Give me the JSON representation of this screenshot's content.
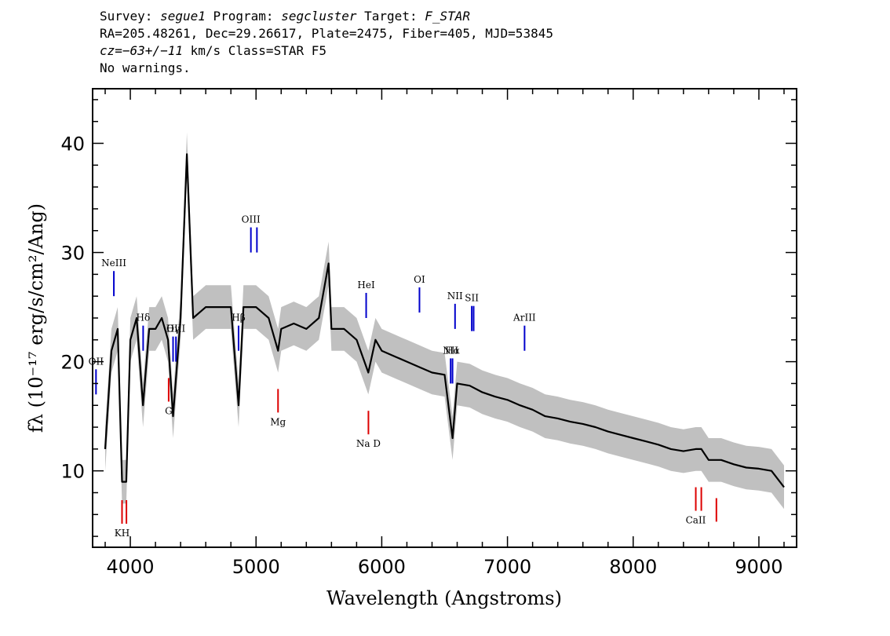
{
  "header": {
    "l1": {
      "a": "Survey: ",
      "b": "segue1",
      "c": " Program: ",
      "d": "segcluster",
      "e": " Target: ",
      "f": "F_STAR"
    },
    "l2": "RA=205.48261, Dec=29.26617, Plate=2475, Fiber=405, MJD=53845",
    "l3": {
      "a": "cz=−63+/−11",
      "b": " km/s Class=STAR F5"
    },
    "l4": "No warnings."
  },
  "colors": {
    "flux": "#000000",
    "error": "#c0c0c0",
    "emission": "#0000cc",
    "absorption": "#dd0000"
  },
  "chart_data": {
    "type": "line",
    "xlabel": "Wavelength (Angstroms)",
    "ylabel": "fλ (10⁻¹⁷ erg/s/cm²/Ang)",
    "xlim": [
      3700,
      9300
    ],
    "ylim": [
      3,
      45
    ],
    "xticks": [
      4000,
      5000,
      6000,
      7000,
      8000,
      9000
    ],
    "yticks": [
      10,
      20,
      30,
      40
    ],
    "x": [
      3800,
      3850,
      3900,
      3934,
      3968,
      4000,
      4050,
      4101,
      4150,
      4200,
      4250,
      4300,
      4340,
      4400,
      4450,
      4500,
      4600,
      4700,
      4800,
      4861,
      4900,
      5000,
      5100,
      5175,
      5200,
      5300,
      5400,
      5500,
      5577,
      5600,
      5700,
      5800,
      5893,
      5950,
      6000,
      6100,
      6200,
      6300,
      6400,
      6500,
      6563,
      6600,
      6700,
      6800,
      6900,
      7000,
      7100,
      7200,
      7300,
      7400,
      7500,
      7600,
      7700,
      7800,
      7900,
      8000,
      8100,
      8200,
      8300,
      8400,
      8498,
      8542,
      8600,
      8662,
      8700,
      8800,
      8900,
      9000,
      9100,
      9200
    ],
    "y": [
      12,
      21,
      23,
      9,
      9,
      22,
      24,
      16,
      23,
      23,
      24,
      22,
      15,
      24,
      39,
      24,
      25,
      25,
      25,
      16,
      25,
      25,
      24,
      21,
      23,
      23.5,
      23,
      24,
      29,
      23,
      23,
      22,
      19,
      22,
      21,
      20.5,
      20,
      19.5,
      19,
      18.8,
      13,
      18,
      17.8,
      17.2,
      16.8,
      16.5,
      16,
      15.6,
      15,
      14.8,
      14.5,
      14.3,
      14,
      13.6,
      13.3,
      13,
      12.7,
      12.4,
      12,
      11.8,
      12,
      12,
      11,
      11,
      11,
      10.6,
      10.3,
      10.2,
      10,
      8.5
    ],
    "error_band_halfwidth": 2,
    "emission_lines": [
      {
        "label": "OII",
        "x": 3727
      },
      {
        "label": "NeIII",
        "x": 3869
      },
      {
        "label": "Hδ",
        "x": 4102
      },
      {
        "label": "Hγ",
        "x": 4340
      },
      {
        "label": "OIII",
        "x": 4363
      },
      {
        "label": "Hβ",
        "x": 4861
      },
      {
        "label": "OIII",
        "x": 4959
      },
      {
        "label": "OIII",
        "x": 5007
      },
      {
        "label": "HeI",
        "x": 5876
      },
      {
        "label": "OI",
        "x": 6300
      },
      {
        "label": "NII",
        "x": 6548
      },
      {
        "label": "Hα",
        "x": 6563
      },
      {
        "label": "NII",
        "x": 6583
      },
      {
        "label": "SII",
        "x": 6716
      },
      {
        "label": "SII",
        "x": 6731
      },
      {
        "label": "ArIII",
        "x": 7136
      }
    ],
    "absorption_lines": [
      {
        "label": "KH",
        "x": 3934
      },
      {
        "label": "KH",
        "x": 3969
      },
      {
        "label": "G",
        "x": 4305
      },
      {
        "label": "Mg",
        "x": 5175
      },
      {
        "label": "Na D",
        "x": 5894
      },
      {
        "label": "CaII",
        "x": 8498
      },
      {
        "label": "CaII",
        "x": 8542
      },
      {
        "label": "CaII",
        "x": 8662
      }
    ]
  }
}
